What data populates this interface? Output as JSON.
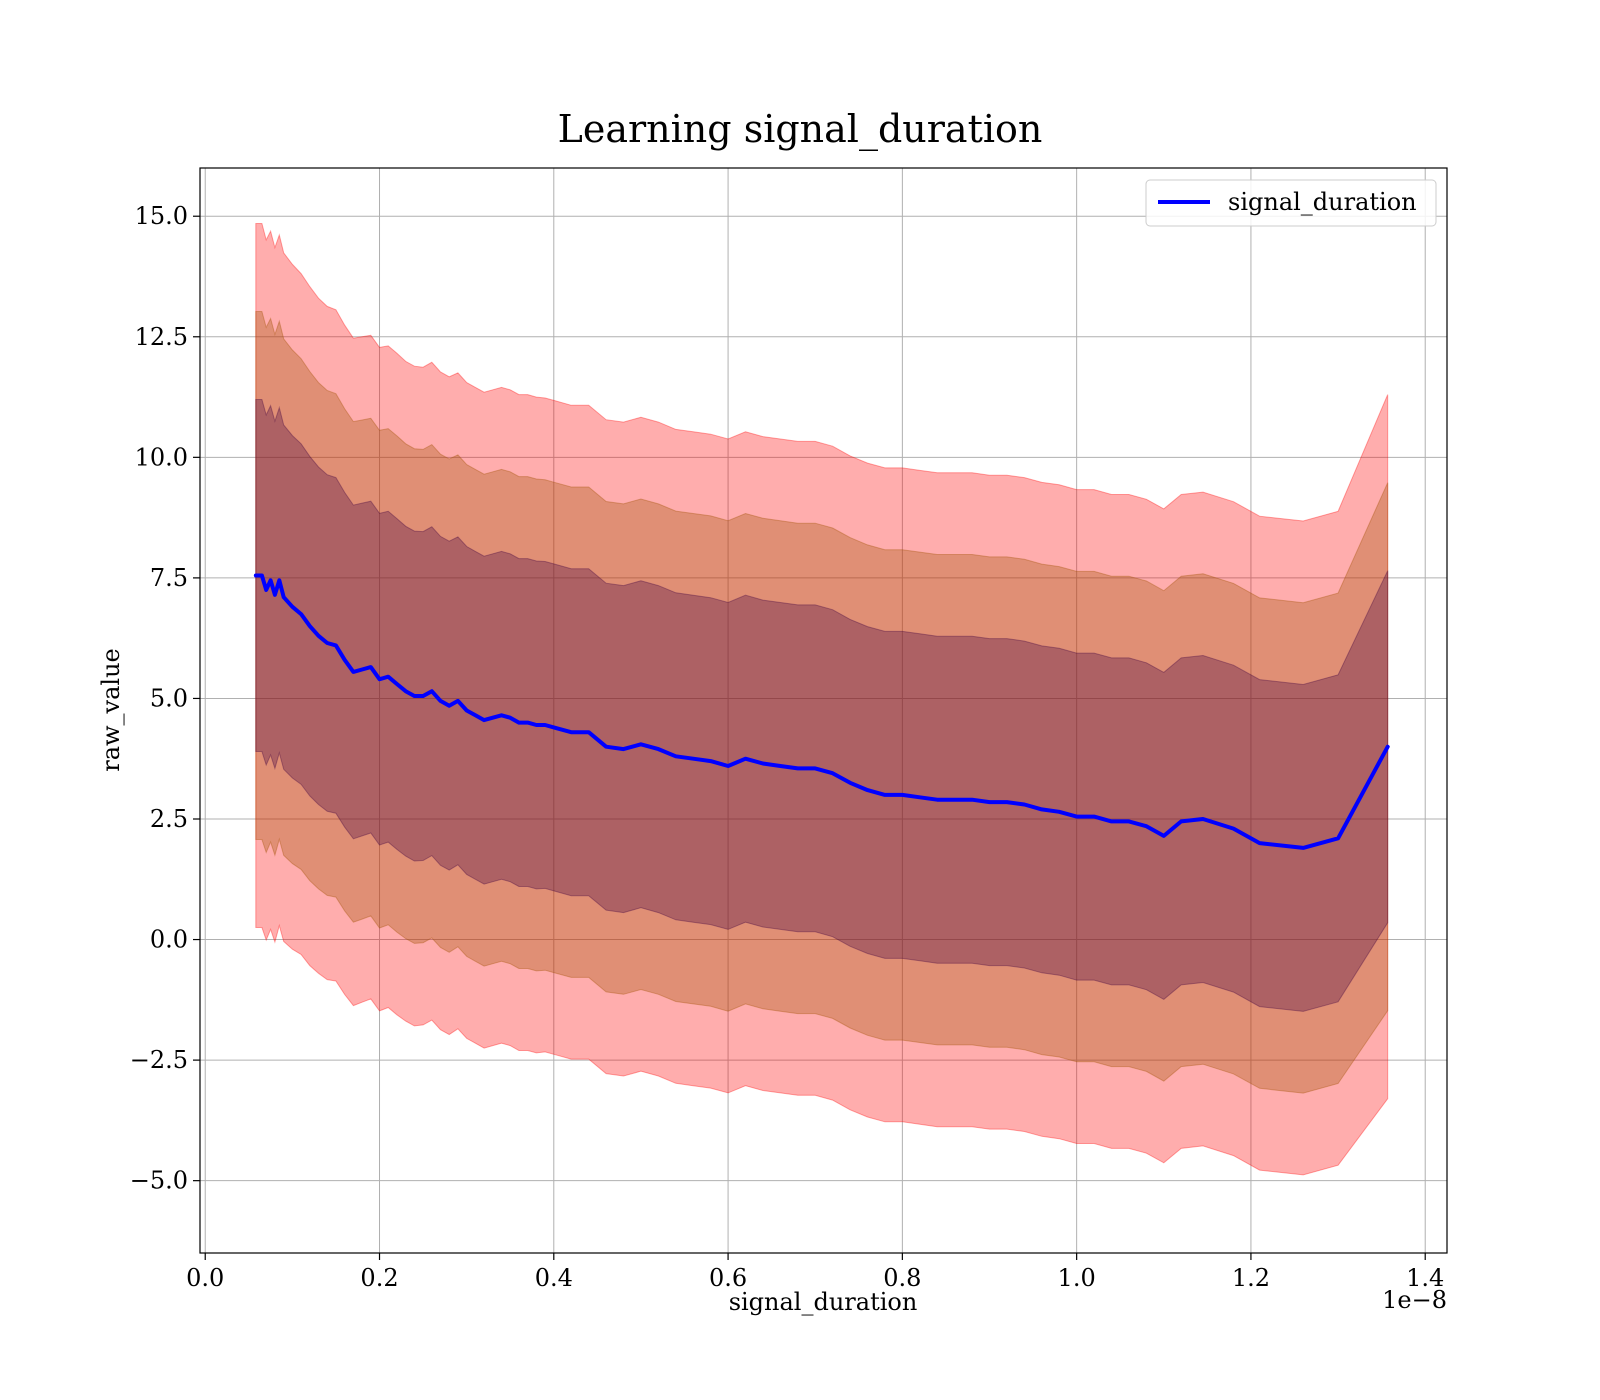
{
  "chart_data": {
    "type": "line",
    "title": "Learning signal_duration",
    "xlabel": "signal_duration",
    "ylabel": "raw_value",
    "x_offset_label": "1e−8",
    "xlim": [
      -0.006,
      1.425
    ],
    "ylim": [
      -6.5,
      16.0
    ],
    "xticks": [
      0.0,
      0.2,
      0.4,
      0.6,
      0.8,
      1.0,
      1.2,
      1.4
    ],
    "xtick_labels": [
      "0.0",
      "0.2",
      "0.4",
      "0.6",
      "0.8",
      "1.0",
      "1.2",
      "1.4"
    ],
    "yticks": [
      -5.0,
      -2.5,
      0.0,
      2.5,
      5.0,
      7.5,
      10.0,
      12.5,
      15.0
    ],
    "ytick_labels": [
      "−5.0",
      "−2.5",
      "0.0",
      "2.5",
      "5.0",
      "7.5",
      "10.0",
      "12.5",
      "15.0"
    ],
    "grid": true,
    "legend_position": "top-right",
    "colors": {
      "mean_line": "#0000ff",
      "band_outer": "#ff0000",
      "band_middle": "#a05000",
      "band_inner": "#400040",
      "grid": "#b0b0b0",
      "axes": "#000000"
    },
    "series": [
      {
        "name": "signal_duration",
        "x": [
          0.058,
          0.065,
          0.07,
          0.075,
          0.08,
          0.085,
          0.09,
          0.1,
          0.11,
          0.12,
          0.13,
          0.14,
          0.15,
          0.16,
          0.17,
          0.18,
          0.19,
          0.2,
          0.21,
          0.22,
          0.23,
          0.24,
          0.25,
          0.26,
          0.27,
          0.28,
          0.29,
          0.3,
          0.31,
          0.32,
          0.33,
          0.34,
          0.35,
          0.36,
          0.37,
          0.38,
          0.39,
          0.4,
          0.42,
          0.44,
          0.46,
          0.48,
          0.5,
          0.52,
          0.54,
          0.56,
          0.58,
          0.6,
          0.62,
          0.64,
          0.66,
          0.68,
          0.7,
          0.72,
          0.74,
          0.76,
          0.78,
          0.8,
          0.82,
          0.84,
          0.86,
          0.88,
          0.9,
          0.92,
          0.94,
          0.96,
          0.98,
          1.0,
          1.02,
          1.04,
          1.06,
          1.08,
          1.1,
          1.12,
          1.145,
          1.18,
          1.21,
          1.26,
          1.3,
          1.357
        ],
        "y": [
          7.55,
          7.55,
          7.25,
          7.45,
          7.15,
          7.45,
          7.1,
          6.9,
          6.75,
          6.5,
          6.3,
          6.15,
          6.1,
          5.8,
          5.55,
          5.6,
          5.65,
          5.4,
          5.45,
          5.3,
          5.15,
          5.05,
          5.05,
          5.15,
          4.95,
          4.85,
          4.95,
          4.75,
          4.65,
          4.55,
          4.6,
          4.65,
          4.6,
          4.5,
          4.5,
          4.45,
          4.45,
          4.4,
          4.3,
          4.3,
          4.0,
          3.95,
          4.05,
          3.95,
          3.8,
          3.75,
          3.7,
          3.6,
          3.75,
          3.65,
          3.6,
          3.55,
          3.55,
          3.45,
          3.25,
          3.1,
          3.0,
          3.0,
          2.95,
          2.9,
          2.9,
          2.9,
          2.85,
          2.85,
          2.8,
          2.7,
          2.65,
          2.55,
          2.55,
          2.45,
          2.45,
          2.35,
          2.15,
          2.45,
          2.5,
          2.3,
          2.0,
          1.9,
          2.1,
          4.0
        ],
        "std": [
          3.65,
          3.65,
          3.63,
          3.62,
          3.6,
          3.58,
          3.57,
          3.55,
          3.53,
          3.52,
          3.5,
          3.49,
          3.48,
          3.47,
          3.46,
          3.45,
          3.44,
          3.44,
          3.43,
          3.43,
          3.42,
          3.42,
          3.41,
          3.41,
          3.41,
          3.41,
          3.4,
          3.4,
          3.4,
          3.4,
          3.4,
          3.4,
          3.4,
          3.4,
          3.4,
          3.4,
          3.39,
          3.39,
          3.39,
          3.39,
          3.39,
          3.39,
          3.39,
          3.39,
          3.39,
          3.39,
          3.39,
          3.39,
          3.39,
          3.39,
          3.39,
          3.39,
          3.39,
          3.39,
          3.39,
          3.39,
          3.39,
          3.39,
          3.39,
          3.39,
          3.39,
          3.39,
          3.39,
          3.39,
          3.39,
          3.39,
          3.39,
          3.39,
          3.39,
          3.39,
          3.39,
          3.39,
          3.39,
          3.39,
          3.39,
          3.39,
          3.39,
          3.39,
          3.39,
          3.65
        ]
      }
    ]
  }
}
